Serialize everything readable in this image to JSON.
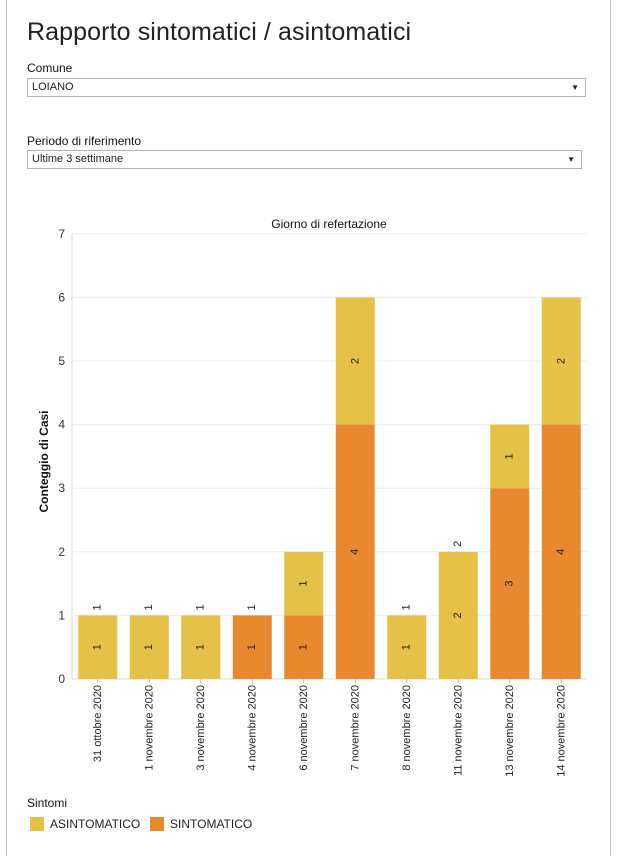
{
  "page": {
    "title": "Rapporto sintomatici / asintomatici"
  },
  "filters": {
    "comune": {
      "label": "Comune",
      "value": "LOIANO"
    },
    "periodo": {
      "label": "Periodo di riferimento",
      "value": "Ultime 3 settimane"
    }
  },
  "icons": {
    "dropdown_arrow": "triangle-down-icon"
  },
  "legend": {
    "title": "Sintomi",
    "items": [
      {
        "label": "ASINTOMATICO",
        "color": "#e6c147"
      },
      {
        "label": "SINTOMATICO",
        "color": "#e8892f"
      }
    ]
  },
  "chart_data": {
    "type": "bar",
    "stacked": true,
    "title": "Giorno di refertazione",
    "xlabel": "",
    "ylabel": "Conteggio di Casi",
    "ylim": [
      0,
      7
    ],
    "yticks": [
      0,
      1,
      2,
      3,
      4,
      5,
      6,
      7
    ],
    "grid": true,
    "legend_position": "bottom-left",
    "categories": [
      "31 ottobre 2020",
      "1 novembre 2020",
      "3 novembre 2020",
      "4 novembre 2020",
      "6 novembre 2020",
      "7 novembre 2020",
      "8 novembre 2020",
      "11 novembre 2020",
      "13 novembre 2020",
      "14 novembre 2020"
    ],
    "series": [
      {
        "name": "SINTOMATICO",
        "color": "#e8892f",
        "values": [
          0,
          0,
          0,
          1,
          1,
          4,
          0,
          0,
          3,
          4
        ]
      },
      {
        "name": "ASINTOMATICO",
        "color": "#e6c147",
        "values": [
          1,
          1,
          1,
          0,
          1,
          2,
          1,
          2,
          1,
          2
        ]
      }
    ]
  }
}
